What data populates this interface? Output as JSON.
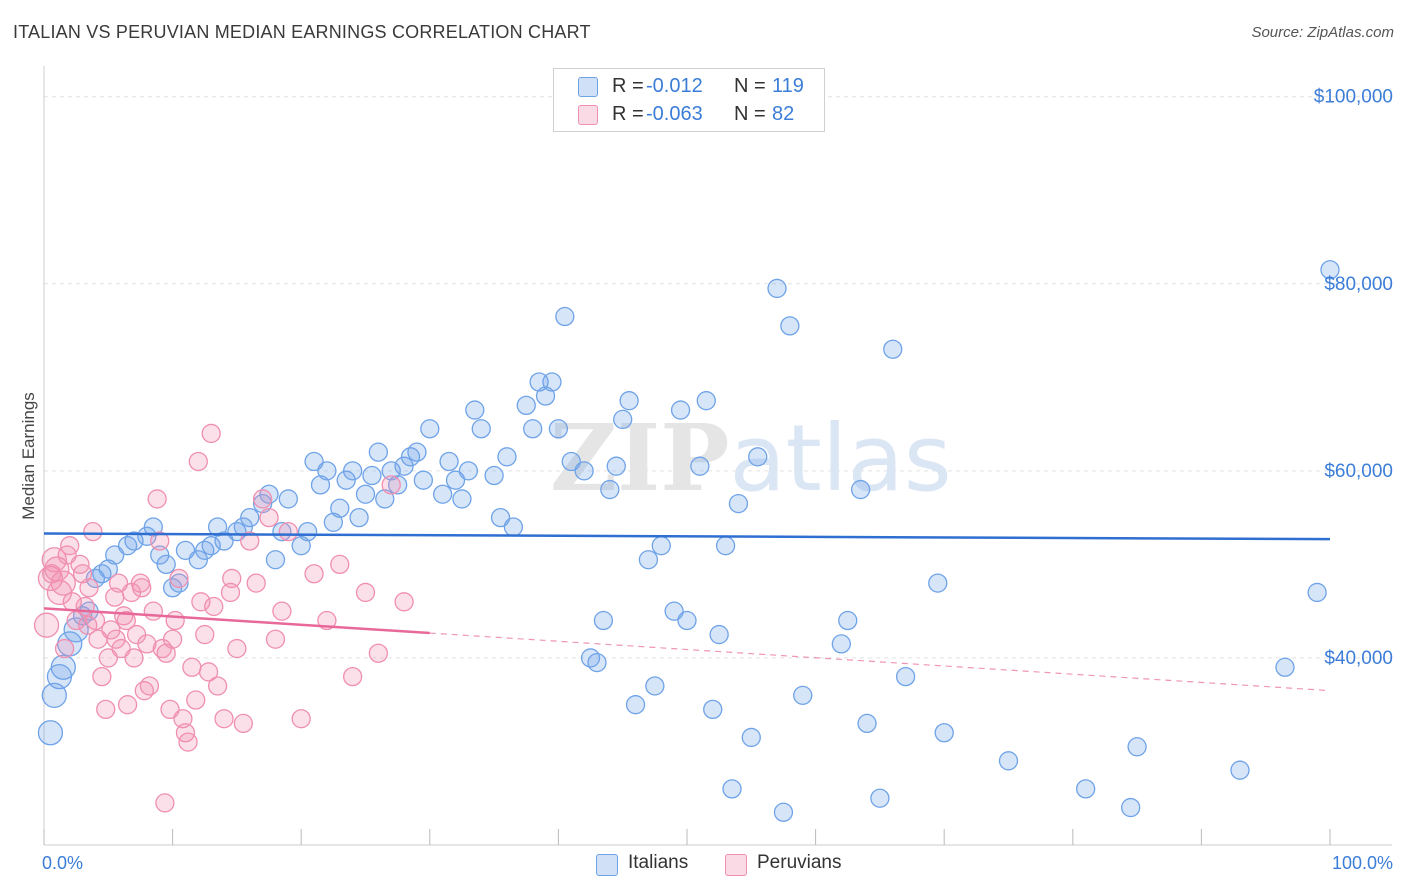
{
  "title": "ITALIAN VS PERUVIAN MEDIAN EARNINGS CORRELATION CHART",
  "source": "Source: ZipAtlas.com",
  "watermark": "ZIPatlas",
  "legend": {
    "rows": [
      {
        "r_label": "R =",
        "r_value": "-0.012",
        "n_label": "N =",
        "n_value": "119",
        "color": "#6fa3e8"
      },
      {
        "r_label": "R =",
        "r_value": "-0.063",
        "n_label": "N =",
        "n_value": "82",
        "color": "#f08fb0"
      }
    ]
  },
  "bottom_legend": [
    {
      "label": "Italians",
      "color": "#6fa3e8"
    },
    {
      "label": "Peruvians",
      "color": "#f08fb0"
    }
  ],
  "chart_data": {
    "type": "scatter",
    "title": "ITALIAN VS PERUVIAN MEDIAN EARNINGS CORRELATION CHART",
    "xlabel": "",
    "ylabel": "Median Earnings",
    "xlim": [
      0,
      100
    ],
    "ylim": [
      20000,
      102000
    ],
    "x_tick_labels": [
      "0.0%",
      "100.0%"
    ],
    "y_ticks": [
      40000,
      60000,
      80000,
      100000
    ],
    "y_tick_labels": [
      "$40,000",
      "$60,000",
      "$80,000",
      "$100,000"
    ],
    "series": [
      {
        "name": "Italians",
        "color": "#6fa3e8",
        "trend": {
          "x": [
            0,
            100
          ],
          "y": [
            53300,
            52700
          ],
          "dashed_from": null
        },
        "points": [
          [
            0.5,
            32000
          ],
          [
            0.8,
            36000
          ],
          [
            1.2,
            38000
          ],
          [
            1.5,
            39000
          ],
          [
            2.0,
            41500
          ],
          [
            2.5,
            43000
          ],
          [
            3.0,
            44500
          ],
          [
            3.5,
            45000
          ],
          [
            4.0,
            48500
          ],
          [
            4.5,
            49000
          ],
          [
            5.0,
            49500
          ],
          [
            5.5,
            51000
          ],
          [
            6.5,
            52000
          ],
          [
            7.0,
            52500
          ],
          [
            8.0,
            53000
          ],
          [
            8.5,
            54000
          ],
          [
            9.0,
            51000
          ],
          [
            9.5,
            50000
          ],
          [
            10.0,
            47500
          ],
          [
            10.5,
            48000
          ],
          [
            11.0,
            51500
          ],
          [
            12.0,
            50500
          ],
          [
            12.5,
            51500
          ],
          [
            13.0,
            52000
          ],
          [
            13.5,
            54000
          ],
          [
            14.0,
            52500
          ],
          [
            15.0,
            53500
          ],
          [
            15.5,
            54000
          ],
          [
            16.0,
            55000
          ],
          [
            17.0,
            56500
          ],
          [
            17.5,
            57500
          ],
          [
            18.0,
            50500
          ],
          [
            18.5,
            53500
          ],
          [
            19.0,
            57000
          ],
          [
            20.0,
            52000
          ],
          [
            20.5,
            53500
          ],
          [
            21.0,
            61000
          ],
          [
            21.5,
            58500
          ],
          [
            22.0,
            60000
          ],
          [
            22.5,
            54500
          ],
          [
            23.0,
            56000
          ],
          [
            23.5,
            59000
          ],
          [
            24.0,
            60000
          ],
          [
            24.5,
            55000
          ],
          [
            25.0,
            57500
          ],
          [
            25.5,
            59500
          ],
          [
            26.0,
            62000
          ],
          [
            26.5,
            57000
          ],
          [
            27.0,
            60000
          ],
          [
            27.5,
            58500
          ],
          [
            28.0,
            60500
          ],
          [
            28.5,
            61500
          ],
          [
            29.0,
            62000
          ],
          [
            29.5,
            59000
          ],
          [
            30.0,
            64500
          ],
          [
            31.0,
            57500
          ],
          [
            31.5,
            61000
          ],
          [
            32.0,
            59000
          ],
          [
            32.5,
            57000
          ],
          [
            33.0,
            60000
          ],
          [
            33.5,
            66500
          ],
          [
            34.0,
            64500
          ],
          [
            35.0,
            59500
          ],
          [
            35.5,
            55000
          ],
          [
            36.0,
            61500
          ],
          [
            36.5,
            54000
          ],
          [
            37.5,
            67000
          ],
          [
            38.0,
            64500
          ],
          [
            38.5,
            69500
          ],
          [
            39.0,
            68000
          ],
          [
            39.5,
            69500
          ],
          [
            40.0,
            64500
          ],
          [
            40.5,
            76500
          ],
          [
            41.0,
            61000
          ],
          [
            42.0,
            60000
          ],
          [
            42.5,
            40000
          ],
          [
            43.0,
            39500
          ],
          [
            43.5,
            44000
          ],
          [
            44.0,
            58000
          ],
          [
            44.5,
            60500
          ],
          [
            45.0,
            65500
          ],
          [
            45.5,
            67500
          ],
          [
            46.0,
            35000
          ],
          [
            47.0,
            50500
          ],
          [
            47.5,
            37000
          ],
          [
            48.0,
            52000
          ],
          [
            49.0,
            45000
          ],
          [
            49.5,
            66500
          ],
          [
            50.0,
            44000
          ],
          [
            51.0,
            60500
          ],
          [
            51.5,
            67500
          ],
          [
            52.0,
            34500
          ],
          [
            52.5,
            42500
          ],
          [
            53.0,
            52000
          ],
          [
            53.5,
            26000
          ],
          [
            54.0,
            56500
          ],
          [
            55.0,
            31500
          ],
          [
            55.5,
            61500
          ],
          [
            57.0,
            79500
          ],
          [
            57.5,
            23500
          ],
          [
            58.0,
            75500
          ],
          [
            59.0,
            36000
          ],
          [
            62.0,
            41500
          ],
          [
            62.5,
            44000
          ],
          [
            63.5,
            58000
          ],
          [
            64.0,
            33000
          ],
          [
            65.0,
            25000
          ],
          [
            66.0,
            73000
          ],
          [
            67.0,
            38000
          ],
          [
            69.5,
            48000
          ],
          [
            70.0,
            32000
          ],
          [
            75.0,
            29000
          ],
          [
            81.0,
            26000
          ],
          [
            84.5,
            24000
          ],
          [
            93.0,
            28000
          ],
          [
            96.5,
            39000
          ],
          [
            100.0,
            81500
          ],
          [
            99.0,
            47000
          ],
          [
            85.0,
            30500
          ]
        ]
      },
      {
        "name": "Peruvians",
        "color": "#f08fb0",
        "trend": {
          "x": [
            0,
            100
          ],
          "y": [
            45300,
            36500
          ],
          "dashed_from": 30
        },
        "points": [
          [
            0.2,
            43500
          ],
          [
            0.5,
            48500
          ],
          [
            0.8,
            50500
          ],
          [
            1.0,
            49500
          ],
          [
            1.2,
            47000
          ],
          [
            1.5,
            48000
          ],
          [
            1.8,
            51000
          ],
          [
            2.0,
            52000
          ],
          [
            2.2,
            46000
          ],
          [
            2.5,
            44000
          ],
          [
            2.8,
            50000
          ],
          [
            3.0,
            49000
          ],
          [
            3.2,
            45500
          ],
          [
            3.5,
            47500
          ],
          [
            3.8,
            53500
          ],
          [
            4.0,
            44000
          ],
          [
            4.2,
            42000
          ],
          [
            4.5,
            38000
          ],
          [
            4.8,
            34500
          ],
          [
            5.0,
            40000
          ],
          [
            5.2,
            43000
          ],
          [
            5.5,
            46500
          ],
          [
            5.8,
            48000
          ],
          [
            6.0,
            41000
          ],
          [
            6.2,
            44500
          ],
          [
            6.5,
            35000
          ],
          [
            6.8,
            47000
          ],
          [
            7.0,
            40000
          ],
          [
            7.2,
            42500
          ],
          [
            7.5,
            48000
          ],
          [
            7.8,
            36500
          ],
          [
            8.0,
            41500
          ],
          [
            8.2,
            37000
          ],
          [
            8.5,
            45000
          ],
          [
            8.8,
            57000
          ],
          [
            9.0,
            52500
          ],
          [
            9.2,
            41000
          ],
          [
            9.5,
            40500
          ],
          [
            9.8,
            34500
          ],
          [
            10.0,
            42000
          ],
          [
            10.2,
            44000
          ],
          [
            10.5,
            48500
          ],
          [
            10.8,
            33500
          ],
          [
            11.0,
            32000
          ],
          [
            11.2,
            31000
          ],
          [
            11.5,
            39000
          ],
          [
            11.8,
            35500
          ],
          [
            12.0,
            61000
          ],
          [
            12.2,
            46000
          ],
          [
            12.5,
            42500
          ],
          [
            12.8,
            38500
          ],
          [
            13.0,
            64000
          ],
          [
            13.2,
            45500
          ],
          [
            13.5,
            37000
          ],
          [
            14.0,
            33500
          ],
          [
            14.5,
            47000
          ],
          [
            15.0,
            41000
          ],
          [
            15.5,
            33000
          ],
          [
            16.0,
            52500
          ],
          [
            16.5,
            48000
          ],
          [
            17.0,
            57000
          ],
          [
            17.5,
            55000
          ],
          [
            18.0,
            42000
          ],
          [
            18.5,
            45000
          ],
          [
            19.0,
            53500
          ],
          [
            20.0,
            33500
          ],
          [
            21.0,
            49000
          ],
          [
            22.0,
            44000
          ],
          [
            23.0,
            50000
          ],
          [
            24.0,
            38000
          ],
          [
            25.0,
            47000
          ],
          [
            26.0,
            40500
          ],
          [
            27.0,
            58500
          ],
          [
            28.0,
            46000
          ],
          [
            9.4,
            24500
          ],
          [
            6.4,
            44000
          ],
          [
            3.4,
            43500
          ],
          [
            1.6,
            41000
          ],
          [
            0.6,
            49000
          ],
          [
            14.6,
            48500
          ],
          [
            5.6,
            42000
          ],
          [
            7.6,
            47500
          ]
        ]
      }
    ]
  }
}
